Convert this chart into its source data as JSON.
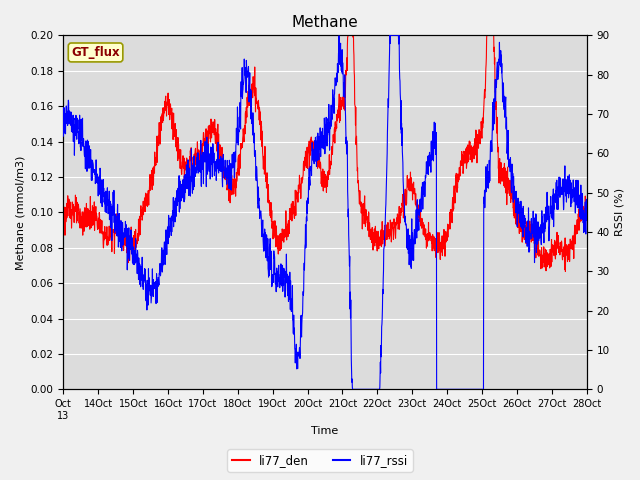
{
  "title": "Methane",
  "ylabel_left": "Methane (mmol/m3)",
  "ylabel_right": "RSSI (%)",
  "xlabel": "Time",
  "ylim_left": [
    0.0,
    0.2
  ],
  "ylim_right": [
    0,
    90
  ],
  "yticks_left": [
    0.0,
    0.02,
    0.04,
    0.06,
    0.08,
    0.1,
    0.12,
    0.14,
    0.16,
    0.18,
    0.2
  ],
  "yticks_right": [
    0,
    10,
    20,
    30,
    40,
    50,
    60,
    70,
    80,
    90
  ],
  "xtick_days": [
    13,
    14,
    15,
    16,
    17,
    18,
    19,
    20,
    21,
    22,
    23,
    24,
    25,
    26,
    27,
    28
  ],
  "legend_labels": [
    "li77_den",
    "li77_rssi"
  ],
  "line_colors": [
    "red",
    "blue"
  ],
  "gt_flux_label": "GT_flux",
  "background_color": "#dcdcdc",
  "fig_background": "#f0f0f0",
  "line_width": 0.8
}
